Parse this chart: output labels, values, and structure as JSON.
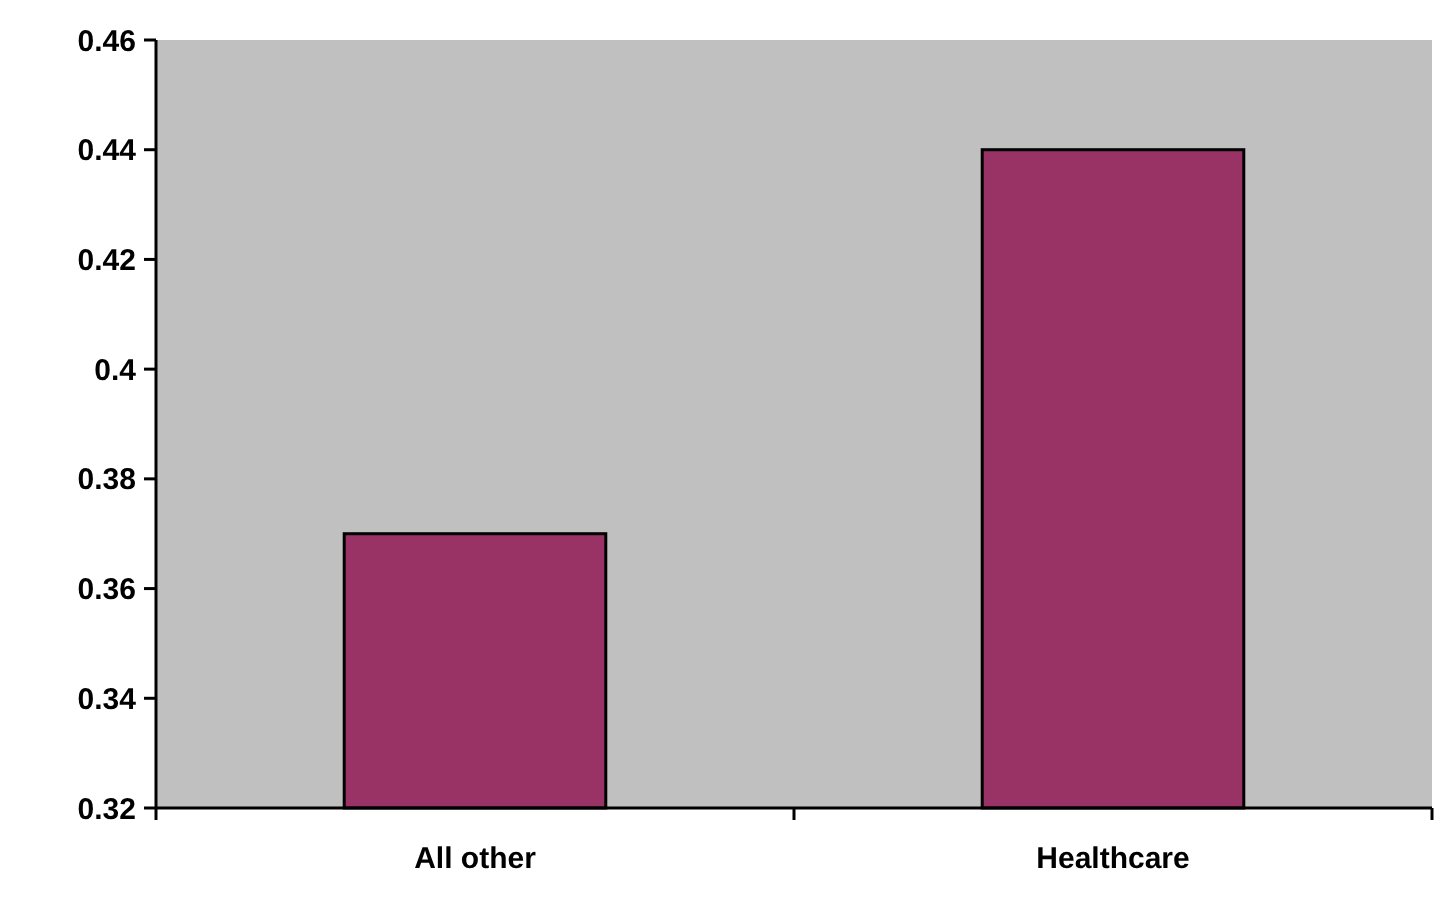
{
  "chart_data": {
    "type": "bar",
    "categories": [
      "All other",
      "Healthcare"
    ],
    "values": [
      0.37,
      0.44
    ],
    "color": "#993366",
    "ylim": [
      0.32,
      0.46
    ],
    "yticks": [
      0.32,
      0.34,
      0.36,
      0.38,
      0.4,
      0.42,
      0.44,
      0.46
    ],
    "grid": false
  }
}
